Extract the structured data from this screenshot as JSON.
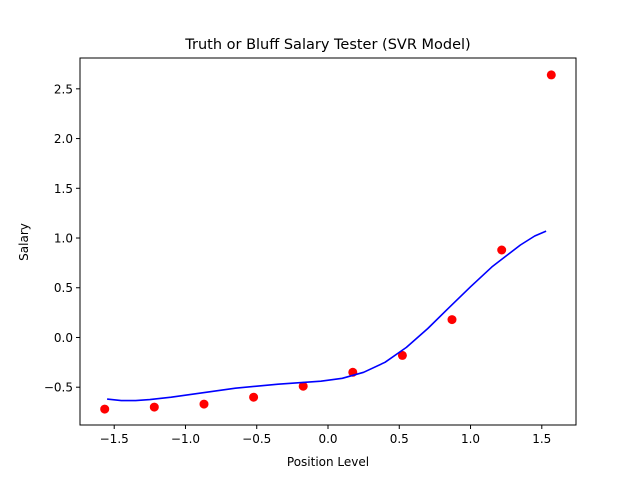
{
  "chart_data": {
    "type": "scatter",
    "title": "Truth or Bluff Salary Tester (SVR Model)",
    "xlabel": "Position Level",
    "ylabel": "Salary",
    "xlim": [
      -1.74,
      1.74
    ],
    "ylim": [
      -0.88,
      2.81
    ],
    "xticks": [
      -1.5,
      -1.0,
      -0.5,
      0.0,
      0.5,
      1.0,
      1.5
    ],
    "xtick_labels": [
      "−1.5",
      "−1.0",
      "−0.5",
      "0.0",
      "0.5",
      "1.0",
      "1.5"
    ],
    "yticks": [
      -0.5,
      0.0,
      0.5,
      1.0,
      1.5,
      2.0,
      2.5
    ],
    "ytick_labels": [
      "−0.5",
      "0.0",
      "0.5",
      "1.0",
      "1.5",
      "2.0",
      "2.5"
    ],
    "grid": false,
    "series": [
      {
        "kind": "scatter",
        "color": "#ff0000",
        "x": [
          -1.567,
          -1.219,
          -0.87,
          -0.522,
          -0.174,
          0.174,
          0.522,
          0.87,
          1.219,
          1.567
        ],
        "y": [
          -0.72,
          -0.7,
          -0.67,
          -0.6,
          -0.49,
          -0.35,
          -0.18,
          0.18,
          0.88,
          2.64
        ]
      },
      {
        "kind": "line",
        "color": "#0000ff",
        "x": [
          -1.55,
          -1.45,
          -1.35,
          -1.25,
          -1.1,
          -0.95,
          -0.8,
          -0.65,
          -0.5,
          -0.35,
          -0.2,
          -0.05,
          0.1,
          0.25,
          0.4,
          0.55,
          0.7,
          0.85,
          1.0,
          1.15,
          1.25,
          1.35,
          1.45,
          1.53
        ],
        "y": [
          -0.62,
          -0.635,
          -0.635,
          -0.625,
          -0.6,
          -0.57,
          -0.54,
          -0.51,
          -0.49,
          -0.47,
          -0.455,
          -0.44,
          -0.41,
          -0.35,
          -0.25,
          -0.1,
          0.09,
          0.3,
          0.51,
          0.71,
          0.82,
          0.93,
          1.02,
          1.07
        ]
      }
    ]
  }
}
